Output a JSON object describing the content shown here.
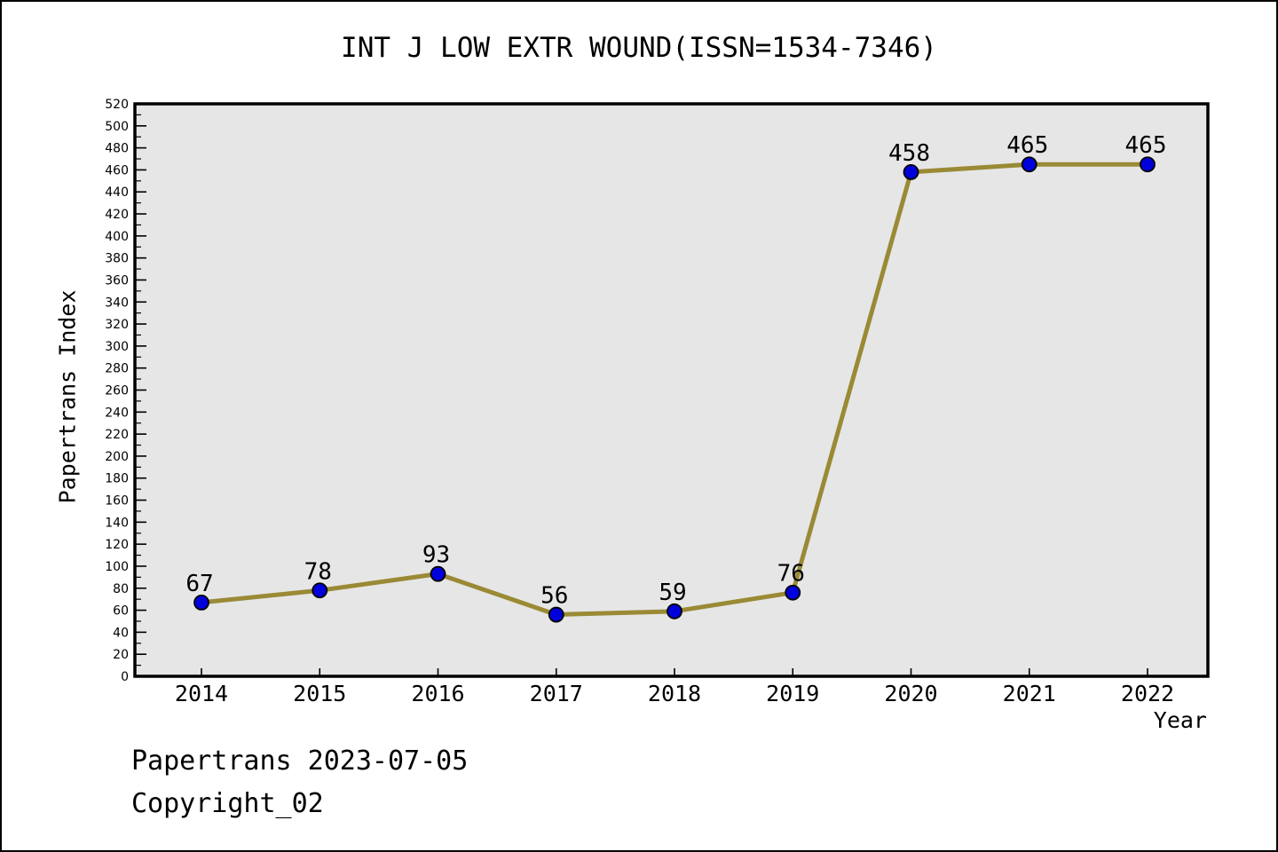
{
  "chart_data": {
    "type": "line",
    "title": "INT J LOW EXTR WOUND(ISSN=1534-7346)",
    "xlabel": "Year",
    "ylabel": "Papertrans Index",
    "categories": [
      "2014",
      "2015",
      "2016",
      "2017",
      "2018",
      "2019",
      "2020",
      "2021",
      "2022"
    ],
    "values": [
      67,
      78,
      93,
      56,
      59,
      76,
      458,
      465,
      465
    ],
    "ylim": [
      0,
      520
    ],
    "ytick_step": 20,
    "yminor_step": 10,
    "grid": false,
    "legend": null,
    "colors": {
      "line": "#9a8a35",
      "marker_fill": "#0000dd",
      "marker_edge": "#000000",
      "plot_bg": "#e6e6e6",
      "frame": "#000000",
      "text": "#000000"
    }
  },
  "footer": {
    "line1": "Papertrans 2023-07-05",
    "line2": "Copyright_02"
  }
}
